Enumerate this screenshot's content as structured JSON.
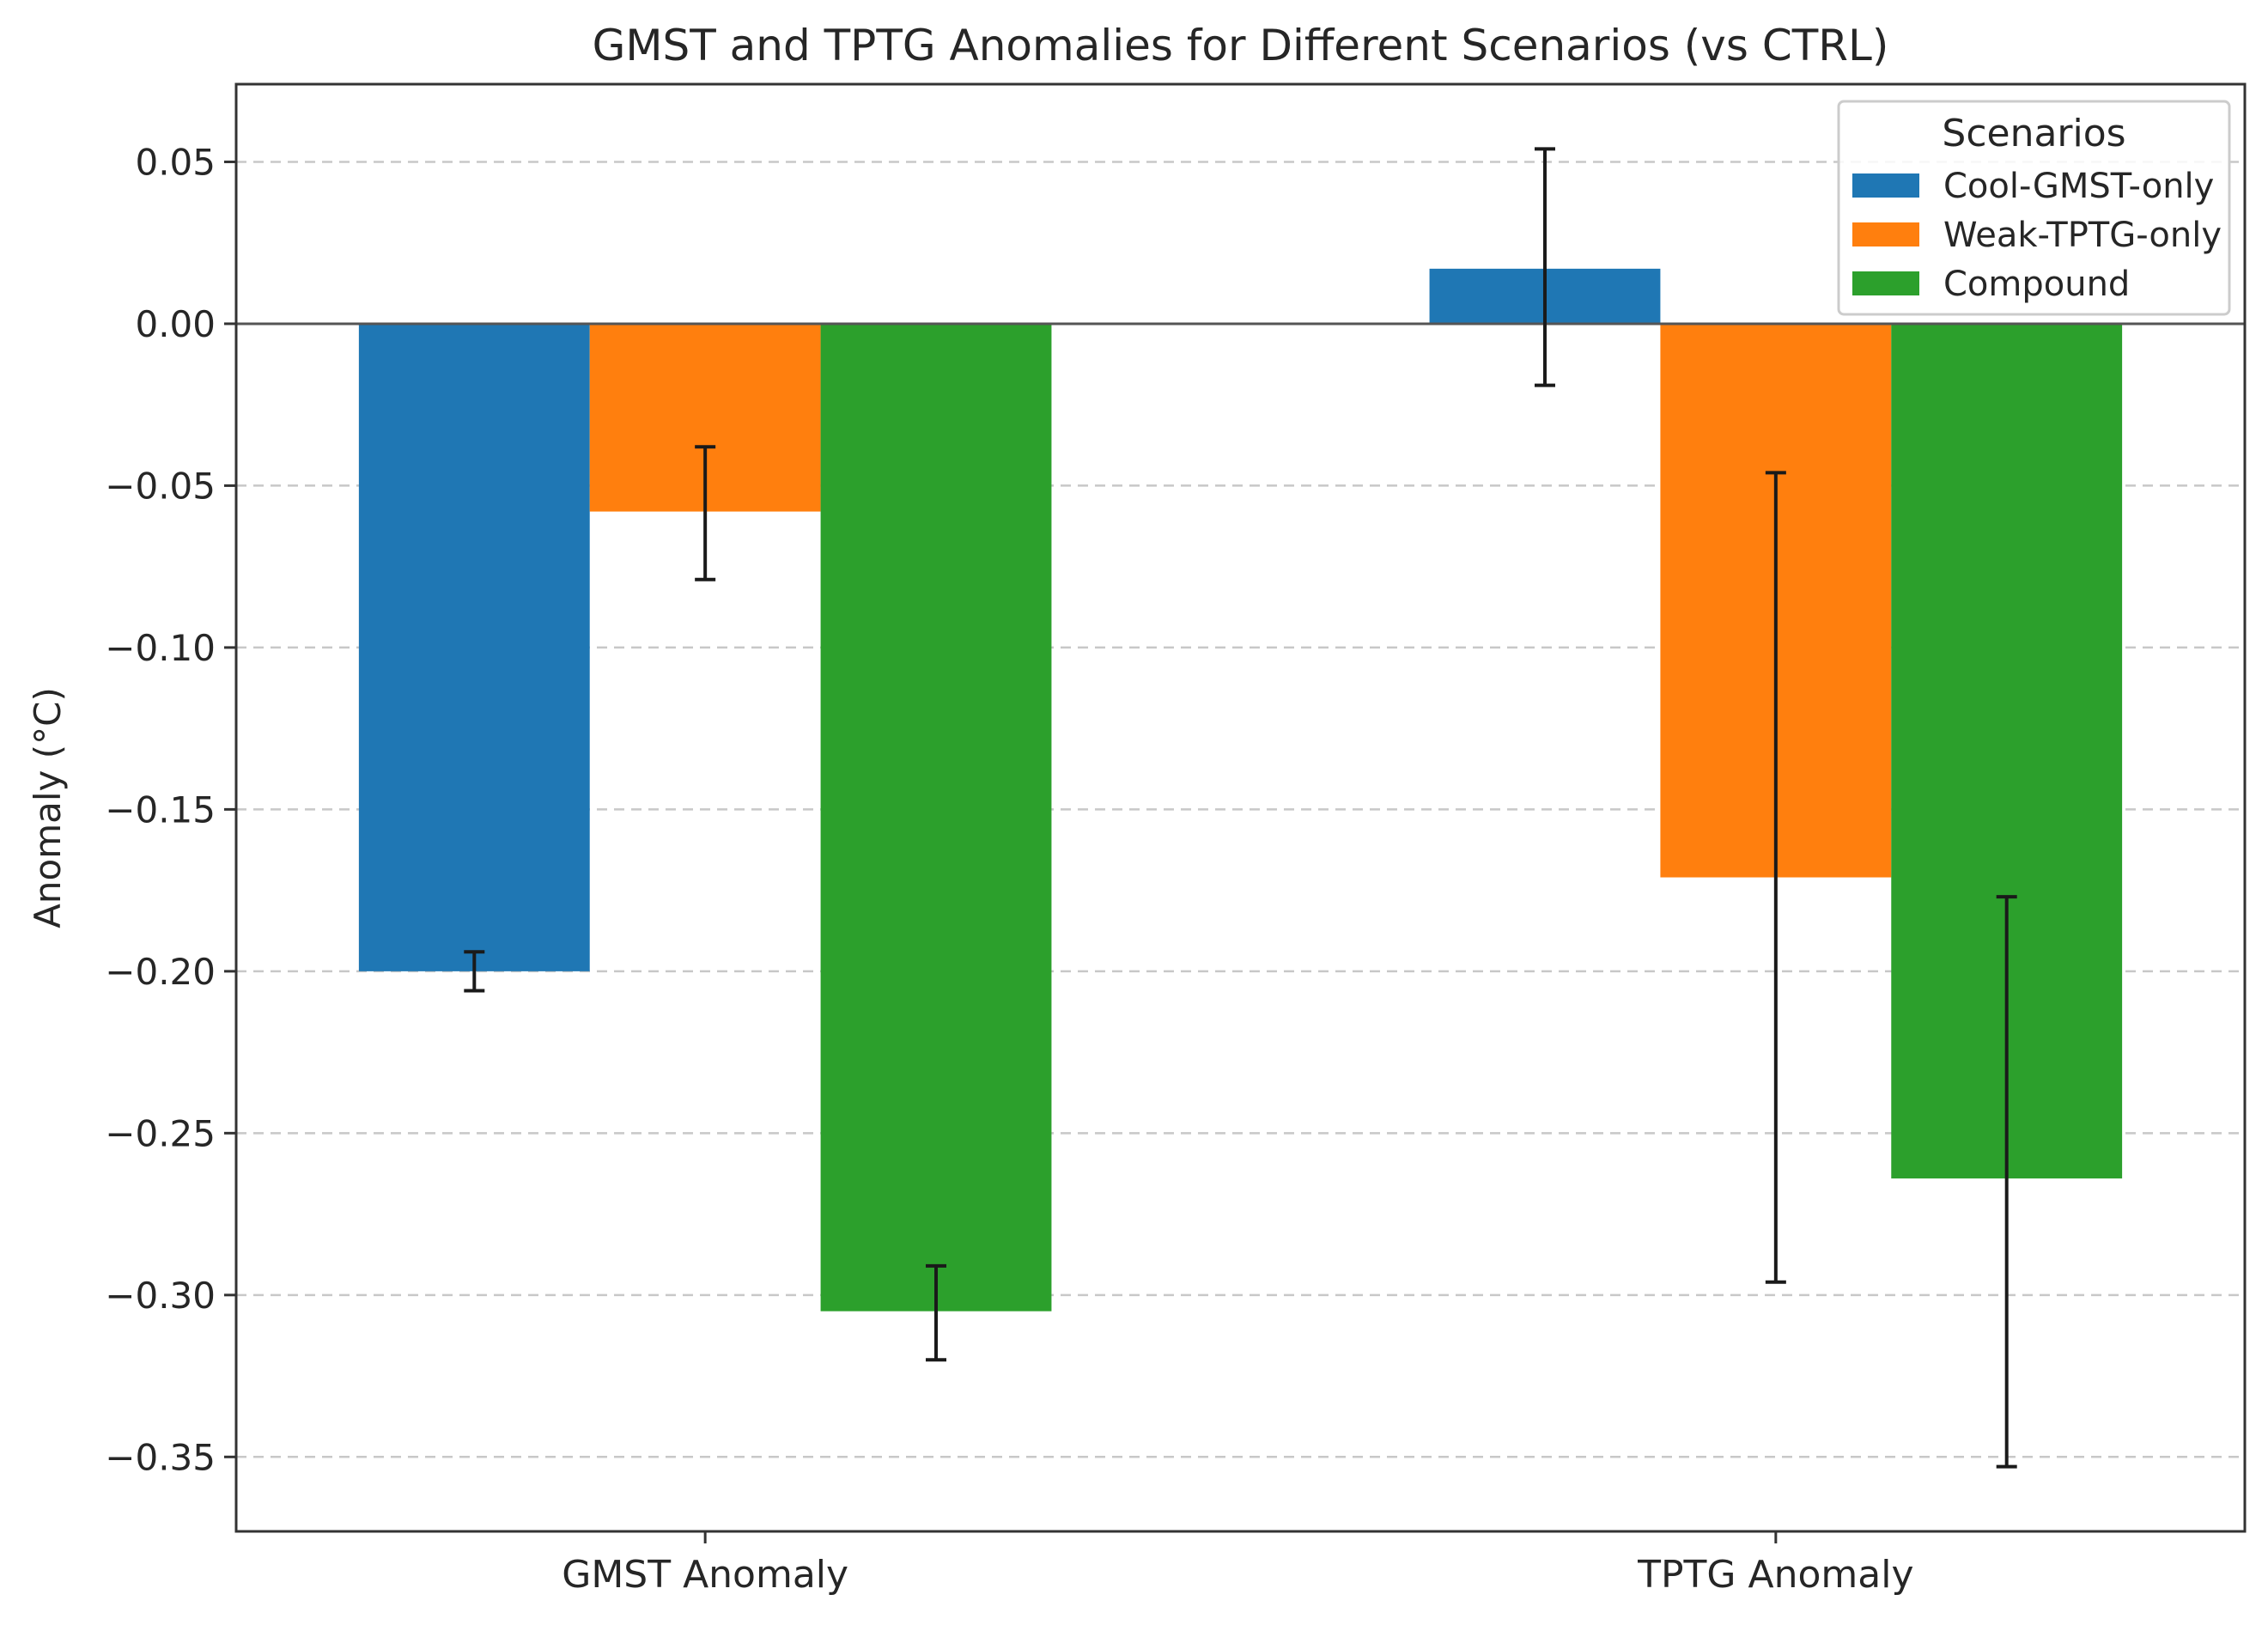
{
  "chart_data": {
    "type": "bar",
    "title": "GMST and TPTG Anomalies for Different Scenarios (vs CTRL)",
    "xlabel": "",
    "ylabel": "Anomaly (°C)",
    "categories": [
      "GMST Anomaly",
      "TPTG Anomaly"
    ],
    "ylim": [
      -0.373,
      0.074
    ],
    "yticks": [
      0.05,
      0.0,
      -0.05,
      -0.1,
      -0.15,
      -0.2,
      -0.25,
      -0.3,
      -0.35
    ],
    "ytick_labels": [
      "0.05",
      "0.00",
      "−0.05",
      "−0.10",
      "−0.15",
      "−0.20",
      "−0.25",
      "−0.30",
      "−0.35"
    ],
    "grid": "y-dashed",
    "zero_line": true,
    "series": [
      {
        "name": "Cool-GMST-only",
        "color": "#1f77b4",
        "values": [
          -0.2,
          0.017
        ],
        "error_low": [
          -0.206,
          -0.019
        ],
        "error_high": [
          -0.194,
          0.054
        ]
      },
      {
        "name": "Weak-TPTG-only",
        "color": "#ff7f0e",
        "values": [
          -0.058,
          -0.171
        ],
        "error_low": [
          -0.079,
          -0.296
        ],
        "error_high": [
          -0.038,
          -0.046
        ]
      },
      {
        "name": "Compound",
        "color": "#2ca02c",
        "values": [
          -0.305,
          -0.264
        ],
        "error_low": [
          -0.32,
          -0.353
        ],
        "error_high": [
          -0.291,
          -0.177
        ]
      }
    ],
    "legend": {
      "title": "Scenarios",
      "position": "top-right"
    }
  }
}
